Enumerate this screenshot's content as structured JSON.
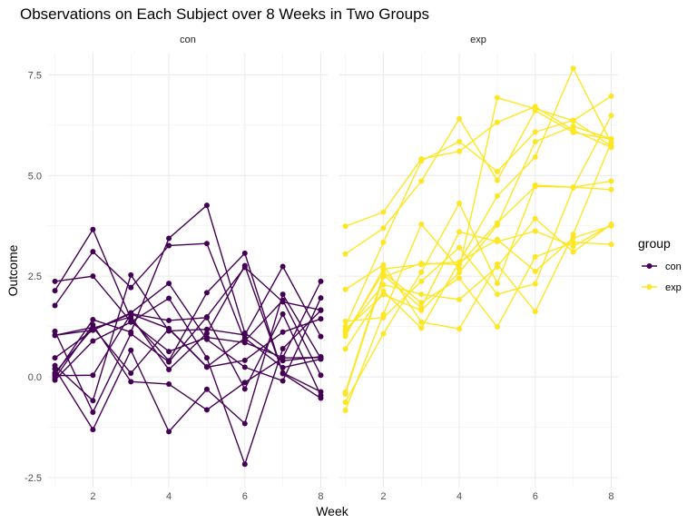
{
  "chart_data": {
    "type": "line",
    "title": "Observations on Each Subject over 8 Weeks in Two Groups",
    "xlabel": "Week",
    "ylabel": "Outcome",
    "x": [
      1,
      2,
      3,
      4,
      5,
      6,
      7,
      8
    ],
    "xlim": [
      0.82,
      8.18
    ],
    "ylim": [
      -2.75,
      8.05
    ],
    "x_ticks": [
      2,
      4,
      6,
      8
    ],
    "x_tick_labels": [
      "2",
      "4",
      "6",
      "8"
    ],
    "y_ticks": [
      -2.5,
      0,
      2.5,
      5,
      7.5
    ],
    "y_tick_labels": [
      "-2.5",
      "0.0",
      "2.5",
      "5.0",
      "7.5"
    ],
    "grid": true,
    "legend": {
      "title": "group",
      "position": "right",
      "entries": [
        {
          "label": "con",
          "color": "#440154"
        },
        {
          "label": "exp",
          "color": "#FDE725"
        }
      ]
    },
    "panels": [
      {
        "strip": "con",
        "group": "con",
        "color": "#440154",
        "series": [
          {
            "values": [
              0.2,
              -1.31,
              0.66,
              -1.36,
              -0.31,
              -1.16,
              2.05,
              0.46
            ]
          },
          {
            "values": [
              1.13,
              -0.88,
              1.07,
              0.37,
              1.49,
              2.72,
              1.86,
              1.66
            ]
          },
          {
            "values": [
              -0.08,
              0.89,
              1.36,
              1.95,
              0.47,
              -2.17,
              0.7,
              1.65
            ]
          },
          {
            "values": [
              1.77,
              3.11,
              2.22,
              3.26,
              3.31,
              0.89,
              1.9,
              0.04
            ]
          },
          {
            "values": [
              0.1,
              1.21,
              1.49,
              0.18,
              1.08,
              2.76,
              0.1,
              -0.37
            ]
          },
          {
            "values": [
              2.37,
              2.5,
              1.37,
              0.63,
              0.98,
              0.85,
              0.48,
              2.37
            ]
          },
          {
            "values": [
              2.14,
              3.66,
              1.44,
              0.4,
              2.09,
              3.07,
              0.08,
              -0.53
            ]
          },
          {
            "values": [
              0.05,
              1.42,
              1.11,
              3.44,
              4.26,
              1.09,
              0.4,
              0.5
            ]
          },
          {
            "values": [
              0.28,
              -0.59,
              2.53,
              1.14,
              1.18,
              1.04,
              2.74,
              1.0
            ]
          },
          {
            "values": [
              0.47,
              1.16,
              1.59,
              2.32,
              0.93,
              0.24,
              -0.1,
              1.96
            ]
          },
          {
            "values": [
              1.03,
              1.16,
              1.57,
              1.4,
              1.47,
              -0.3,
              1.56,
              -0.46
            ]
          },
          {
            "values": [
              -0.03,
              1.29,
              -0.12,
              -0.18,
              -0.82,
              -0.14,
              0.47,
              0.48
            ]
          },
          {
            "values": [
              1.03,
              1.23,
              0.09,
              1.19,
              0.24,
              0.41,
              1.11,
              1.44
            ]
          },
          {
            "values": [
              0.03,
              0.04,
              1.56,
              1.2,
              0.25,
              0.96,
              0.23,
              0.44
            ]
          }
        ]
      },
      {
        "strip": "exp",
        "group": "exp",
        "color": "#FDE725",
        "series": [
          {
            "values": [
              3.74,
              4.09,
              5.41,
              5.6,
              6.32,
              6.71,
              6.12,
              5.7
            ]
          },
          {
            "values": [
              3.05,
              3.69,
              4.86,
              6.41,
              4.88,
              6.61,
              6.07,
              5.9
            ]
          },
          {
            "values": [
              -0.38,
              2.53,
              1.72,
              3.6,
              3.36,
              3.62,
              3.24,
              3.78
            ]
          },
          {
            "values": [
              1.01,
              2.68,
              2.79,
              2.85,
              4.49,
              5.46,
              7.66,
              5.81
            ]
          },
          {
            "values": [
              1.38,
              1.47,
              2.37,
              3.21,
              2.05,
              2.31,
              4.7,
              6.49
            ]
          },
          {
            "values": [
              1.18,
              2.04,
              1.65,
              2.59,
              3.77,
              5.84,
              6.22,
              5.91
            ]
          },
          {
            "values": [
              -0.63,
              1.07,
              2.6,
              4.31,
              2.32,
              4.76,
              4.71,
              4.65
            ]
          },
          {
            "values": [
              0.69,
              2.13,
              1.21,
              2.85,
              3.41,
              2.62,
              3.45,
              3.75
            ]
          },
          {
            "values": [
              -0.83,
              1.55,
              3.79,
              2.68,
              6.93,
              6.66,
              6.36,
              6.97
            ]
          },
          {
            "values": [
              2.17,
              2.78,
              1.36,
              1.19,
              2.8,
              1.62,
              3.54,
              5.83
            ]
          },
          {
            "values": [
              1.06,
              2.59,
              1.84,
              2.45,
              1.24,
              2.98,
              3.34,
              3.29
            ]
          },
          {
            "values": [
              1.25,
              3.34,
              5.36,
              5.84,
              5.1,
              6.08,
              6.37,
              5.73
            ]
          },
          {
            "values": [
              1.12,
              2.29,
              2.05,
              1.92,
              2.73,
              3.93,
              3.1,
              3.79
            ]
          },
          {
            "values": [
              -0.43,
              2.48,
              2.82,
              2.79,
              3.82,
              4.73,
              4.71,
              4.86
            ]
          }
        ]
      }
    ]
  }
}
